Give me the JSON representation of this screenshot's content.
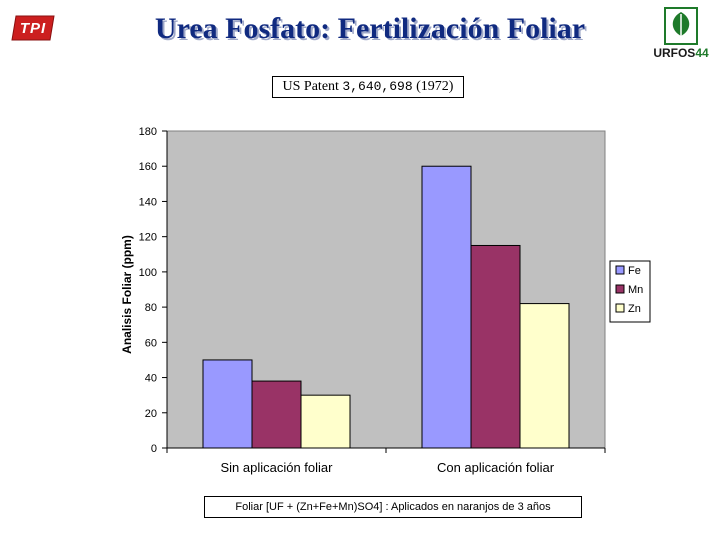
{
  "header": {
    "title": "Urea Fosfato: Fertilización Foliar",
    "logo_left_text": "TPI",
    "logo_right_text": "URFOS",
    "logo_right_number": "44",
    "patent_prefix": "US Patent",
    "patent_number": "3,640,698",
    "patent_year": "(1972)"
  },
  "footnote": "Foliar [UF + (Zn+Fe+Mn)SO4] : Aplicados en naranjos de 3 años",
  "colors": {
    "title": "#102a80",
    "plot_background": "#c0c0c0",
    "logo_red": "#cc1f1f",
    "logo_green": "#1e7a2a"
  },
  "chart_data": {
    "type": "bar",
    "categories": [
      "Sin aplicación foliar",
      "Con aplicación foliar"
    ],
    "series": [
      {
        "name": "Fe",
        "values": [
          50,
          160
        ],
        "color": "#9999ff"
      },
      {
        "name": "Mn",
        "values": [
          38,
          115
        ],
        "color": "#993366"
      },
      {
        "name": "Zn",
        "values": [
          30,
          82
        ],
        "color": "#ffffcc"
      }
    ],
    "ylabel": "Analisis Foliar (ppm)",
    "xlabel": "",
    "ylim": [
      0,
      180
    ],
    "yticks": [
      0,
      20,
      40,
      60,
      80,
      100,
      120,
      140,
      160,
      180
    ],
    "grid": false,
    "legend_position": "right"
  }
}
